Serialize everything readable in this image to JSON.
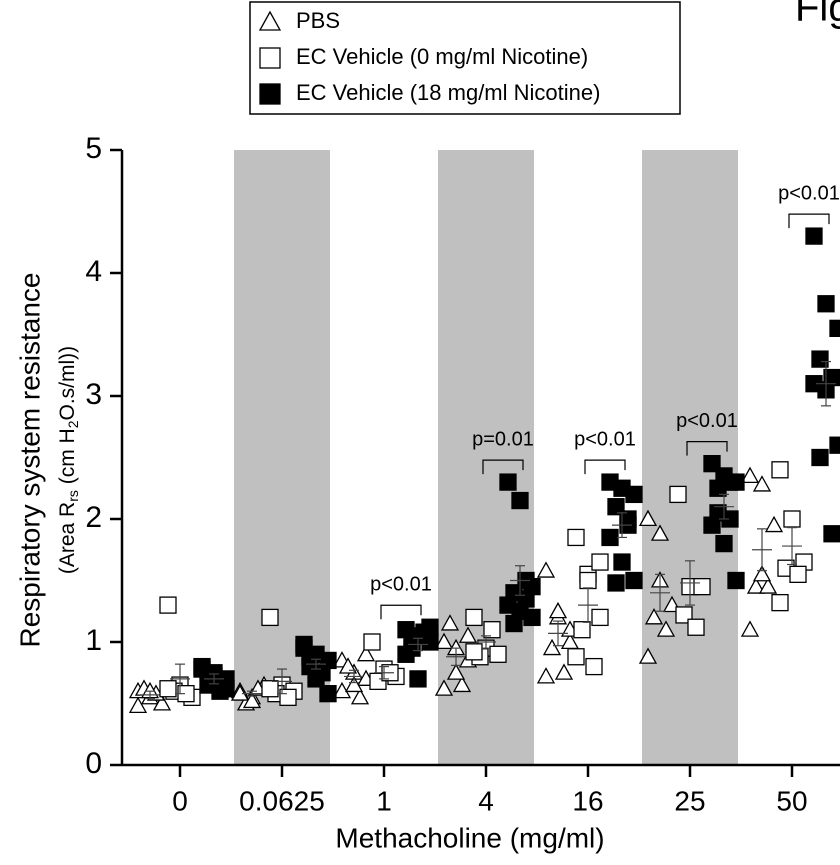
{
  "chart_data": {
    "type": "scatter",
    "title": "Fig",
    "x_label": "Methacholine (mg/ml)",
    "y_label": "Respiratory system resistance",
    "y_label_parts": [
      "(Area R",
      "rs",
      " (cm H",
      "2",
      "O.s/ml))"
    ],
    "categories": [
      "0",
      "0.0625",
      "1",
      "4",
      "16",
      "25",
      "50"
    ],
    "shaded_categories": [
      "0.0625",
      "4",
      "25"
    ],
    "ylim": [
      0,
      5
    ],
    "yticks": [
      0,
      1,
      2,
      3,
      4,
      5
    ],
    "series": [
      {
        "name": "PBS",
        "marker": "triangle",
        "color": "#000000",
        "filled": false,
        "values": [
          [
            0.6,
            0.55,
            0.5,
            0.62,
            0.58,
            0.48,
            0.6
          ],
          [
            0.6,
            0.55,
            0.65,
            0.5,
            0.62,
            0.58,
            0.52
          ],
          [
            0.85,
            0.75,
            0.7,
            0.8,
            0.55,
            0.6,
            0.65,
            0.9
          ],
          [
            1.0,
            0.95,
            0.85,
            1.15,
            0.65,
            0.62,
            0.75,
            1.05
          ],
          [
            1.58,
            1.2,
            1.0,
            0.95,
            0.75,
            0.72,
            1.25,
            1.1
          ],
          [
            2.0,
            1.88,
            1.3,
            1.2,
            1.1,
            0.88,
            1.5
          ],
          [
            2.35,
            2.28,
            1.95,
            1.45,
            1.45,
            1.1,
            1.55
          ]
        ],
        "means": [
          0.57,
          0.58,
          0.72,
          0.88,
          1.07,
          1.4,
          1.75
        ],
        "errors": [
          0.03,
          0.02,
          0.05,
          0.07,
          0.1,
          0.15,
          0.17
        ]
      },
      {
        "name": "EC Vehicle (0 mg/ml Nicotine)",
        "marker": "square",
        "color": "#000000",
        "filled": false,
        "values": [
          [
            1.3,
            0.65,
            0.55,
            0.6,
            0.58,
            0.62
          ],
          [
            1.2,
            0.65,
            0.6,
            0.58,
            0.55,
            0.62
          ],
          [
            1.0,
            0.78,
            0.72,
            0.68,
            0.75
          ],
          [
            1.2,
            0.95,
            0.9,
            0.88,
            1.1,
            0.92
          ],
          [
            1.85,
            1.55,
            1.2,
            1.1,
            0.8,
            0.88,
            1.5,
            1.65
          ],
          [
            2.2,
            1.45,
            1.45,
            1.22,
            1.12
          ],
          [
            2.4,
            2.0,
            1.65,
            1.6,
            1.55,
            1.32
          ]
        ],
        "means": [
          0.7,
          0.68,
          0.75,
          1.0,
          1.3,
          1.48,
          1.78
        ],
        "errors": [
          0.12,
          0.1,
          0.05,
          0.05,
          0.14,
          0.18,
          0.15
        ]
      },
      {
        "name": "EC Vehicle (18 mg/ml Nicotine)",
        "marker": "square",
        "color": "#000000",
        "filled": true,
        "values": [
          [
            0.8,
            0.75,
            0.7,
            0.65,
            0.6,
            0.78,
            0.72,
            0.62
          ],
          [
            0.95,
            0.9,
            0.85,
            0.8,
            0.75,
            0.98,
            0.7,
            0.58,
            0.88
          ],
          [
            1.1,
            1.05,
            1.0,
            0.95,
            1.08,
            0.9,
            0.7,
            1.12,
            1.0
          ],
          [
            2.3,
            2.15,
            1.45,
            1.4,
            1.35,
            1.3,
            1.25,
            1.2,
            1.15,
            1.5
          ],
          [
            2.3,
            2.25,
            2.2,
            2.1,
            1.95,
            1.85,
            1.65,
            1.5,
            1.48,
            2.0
          ],
          [
            2.45,
            2.35,
            2.3,
            2.25,
            2.0,
            1.95,
            1.8,
            1.5,
            2.05,
            2.3
          ],
          [
            4.3,
            3.75,
            3.55,
            3.3,
            3.15,
            3.1,
            3.05,
            2.6,
            2.5,
            1.88
          ]
        ],
        "means": [
          0.7,
          0.82,
          0.98,
          1.5,
          1.95,
          2.1,
          3.1
        ],
        "errors": [
          0.04,
          0.04,
          0.05,
          0.12,
          0.1,
          0.1,
          0.18
        ]
      }
    ],
    "annotations": [
      {
        "category": "1",
        "text": "p<0.01"
      },
      {
        "category": "4",
        "text": "p=0.01"
      },
      {
        "category": "16",
        "text": "p<0.01"
      },
      {
        "category": "25",
        "text": "p<0.01"
      },
      {
        "category": "50",
        "text": "p<0.01"
      }
    ]
  }
}
